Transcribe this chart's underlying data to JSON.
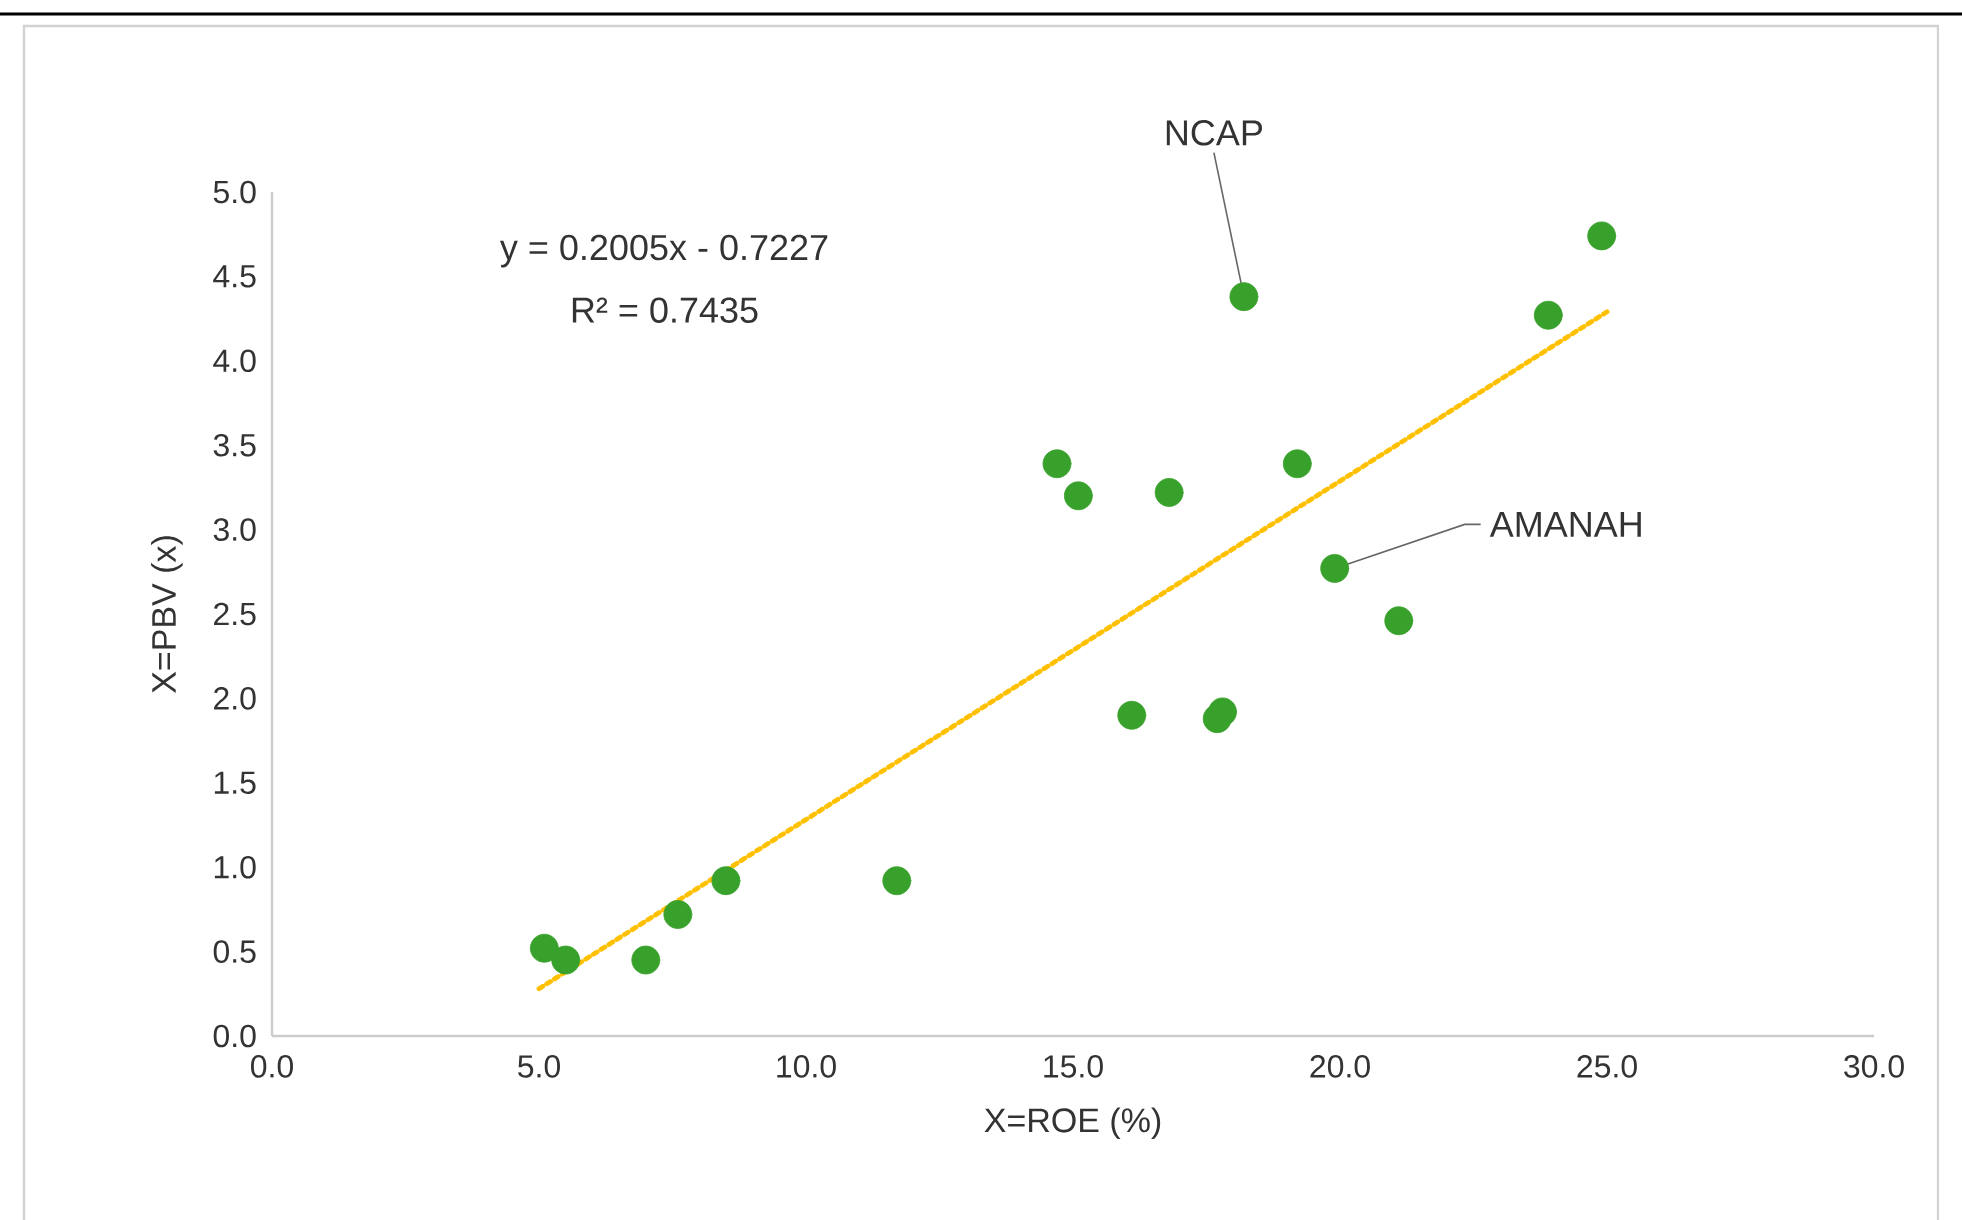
{
  "chart_data": {
    "type": "scatter",
    "xlabel": "X=ROE (%)",
    "ylabel": "X=PBV (x)",
    "xlim": [
      0,
      30
    ],
    "ylim": [
      0,
      5
    ],
    "xticks": [
      {
        "value": 0,
        "label": "0.0"
      },
      {
        "value": 5,
        "label": "5.0"
      },
      {
        "value": 10,
        "label": "10.0"
      },
      {
        "value": 15,
        "label": "15.0"
      },
      {
        "value": 20,
        "label": "20.0"
      },
      {
        "value": 25,
        "label": "25.0"
      },
      {
        "value": 30,
        "label": "30.0"
      }
    ],
    "yticks": [
      {
        "value": 0,
        "label": "0.0"
      },
      {
        "value": 0.5,
        "label": "0.5"
      },
      {
        "value": 1,
        "label": "1.0"
      },
      {
        "value": 1.5,
        "label": "1.5"
      },
      {
        "value": 2,
        "label": "2.0"
      },
      {
        "value": 2.5,
        "label": "2.5"
      },
      {
        "value": 3,
        "label": "3.0"
      },
      {
        "value": 3.5,
        "label": "3.5"
      },
      {
        "value": 4,
        "label": "4.0"
      },
      {
        "value": 4.5,
        "label": "4.5"
      },
      {
        "value": 5,
        "label": "5.0"
      }
    ],
    "series": [
      {
        "type": "scatter",
        "color": "#38a12b",
        "marker": "circle",
        "x": [
          5.1,
          5.5,
          7.0,
          7.6,
          8.5,
          11.7,
          14.7,
          15.1,
          16.1,
          16.8,
          17.7,
          17.8,
          18.2,
          19.2,
          19.9,
          21.1,
          23.9,
          24.9
        ],
        "values": [
          0.52,
          0.45,
          0.45,
          0.72,
          0.92,
          0.92,
          3.39,
          3.2,
          1.9,
          3.22,
          1.88,
          1.92,
          4.38,
          3.39,
          2.77,
          2.46,
          4.27,
          4.74
        ]
      },
      {
        "type": "line",
        "color": "#ffc000",
        "line_style": "dotted",
        "marker": "none",
        "x": [
          5,
          25
        ],
        "values": [
          0.28,
          4.29
        ]
      }
    ],
    "annotations": [
      "y = 0.2005x - 0.7227",
      "R² = 0.7435",
      {
        "text": "NCAP",
        "x": 18.2,
        "y": 4.38
      },
      {
        "text": "AMANAH",
        "x": 19.9,
        "y": 2.77
      }
    ]
  }
}
